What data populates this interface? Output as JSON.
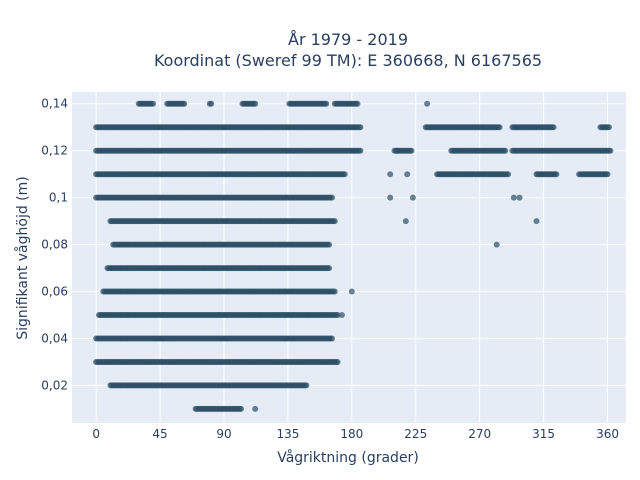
{
  "chart_data": {
    "type": "scatter",
    "title_line1": "År 1979 - 2019",
    "title_line2": "Koordinat (Sweref 99 TM): E 360668, N 6167565",
    "xlabel": "Vågriktning (grader)",
    "ylabel": "Signifikant våghöjd (m)",
    "xlim": [
      -17,
      373
    ],
    "ylim": [
      0.004,
      0.145
    ],
    "xticks": [
      0,
      45,
      90,
      135,
      180,
      225,
      270,
      315,
      360
    ],
    "xtick_labels": [
      "0",
      "45",
      "90",
      "135",
      "180",
      "225",
      "270",
      "315",
      "360"
    ],
    "yticks": [
      0.02,
      0.04,
      0.06,
      0.08,
      0.1,
      0.12,
      0.14
    ],
    "ytick_labels": [
      "0,02",
      "0,04",
      "0,06",
      "0,08",
      "0,1",
      "0,12",
      "0,14"
    ],
    "grid": true,
    "colors": {
      "plot_bg": "#e5ecf6",
      "grid": "#ffffff",
      "marker": "#2e5067",
      "text": "#2a3f5f"
    },
    "series": [
      {
        "marker_opacity": 0.7,
        "bands": [
          {
            "y": 0.14,
            "segments": [
              [
                30,
                40
              ],
              [
                50,
                62
              ],
              [
                80,
                81
              ],
              [
                103,
                112
              ],
              [
                136,
                162
              ],
              [
                168,
                184
              ]
            ]
          },
          {
            "y": 0.13,
            "segments": [
              [
                0,
                186
              ],
              [
                232,
                284
              ],
              [
                293,
                322
              ],
              [
                355,
                361
              ]
            ]
          },
          {
            "y": 0.12,
            "segments": [
              [
                0,
                186
              ],
              [
                210,
                222
              ],
              [
                250,
                288
              ],
              [
                293,
                362
              ]
            ]
          },
          {
            "y": 0.11,
            "segments": [
              [
                0,
                175
              ],
              [
                240,
                290
              ],
              [
                310,
                324
              ],
              [
                340,
                360
              ]
            ]
          },
          {
            "y": 0.1,
            "segments": [
              [
                0,
                166
              ]
            ]
          },
          {
            "y": 0.09,
            "segments": [
              [
                10,
                168
              ]
            ]
          },
          {
            "y": 0.08,
            "segments": [
              [
                12,
                164
              ]
            ]
          },
          {
            "y": 0.07,
            "segments": [
              [
                8,
                164
              ]
            ]
          },
          {
            "y": 0.06,
            "segments": [
              [
                5,
                168
              ]
            ]
          },
          {
            "y": 0.05,
            "segments": [
              [
                2,
                170
              ]
            ]
          },
          {
            "y": 0.04,
            "segments": [
              [
                0,
                166
              ]
            ]
          },
          {
            "y": 0.03,
            "segments": [
              [
                0,
                170
              ]
            ]
          },
          {
            "y": 0.02,
            "segments": [
              [
                10,
                148
              ]
            ]
          },
          {
            "y": 0.01,
            "segments": [
              [
                70,
                102
              ]
            ]
          }
        ],
        "points": [
          {
            "x": 233,
            "y": 0.14
          },
          {
            "x": 212,
            "y": 0.12
          },
          {
            "x": 180,
            "y": 0.06
          },
          {
            "x": 112,
            "y": 0.01
          },
          {
            "x": 173,
            "y": 0.05
          },
          {
            "x": 207,
            "y": 0.11
          },
          {
            "x": 219,
            "y": 0.11
          },
          {
            "x": 207,
            "y": 0.1
          },
          {
            "x": 223,
            "y": 0.1
          },
          {
            "x": 294,
            "y": 0.1
          },
          {
            "x": 298,
            "y": 0.1
          },
          {
            "x": 218,
            "y": 0.09
          },
          {
            "x": 310,
            "y": 0.09
          },
          {
            "x": 282,
            "y": 0.08
          }
        ]
      }
    ]
  }
}
